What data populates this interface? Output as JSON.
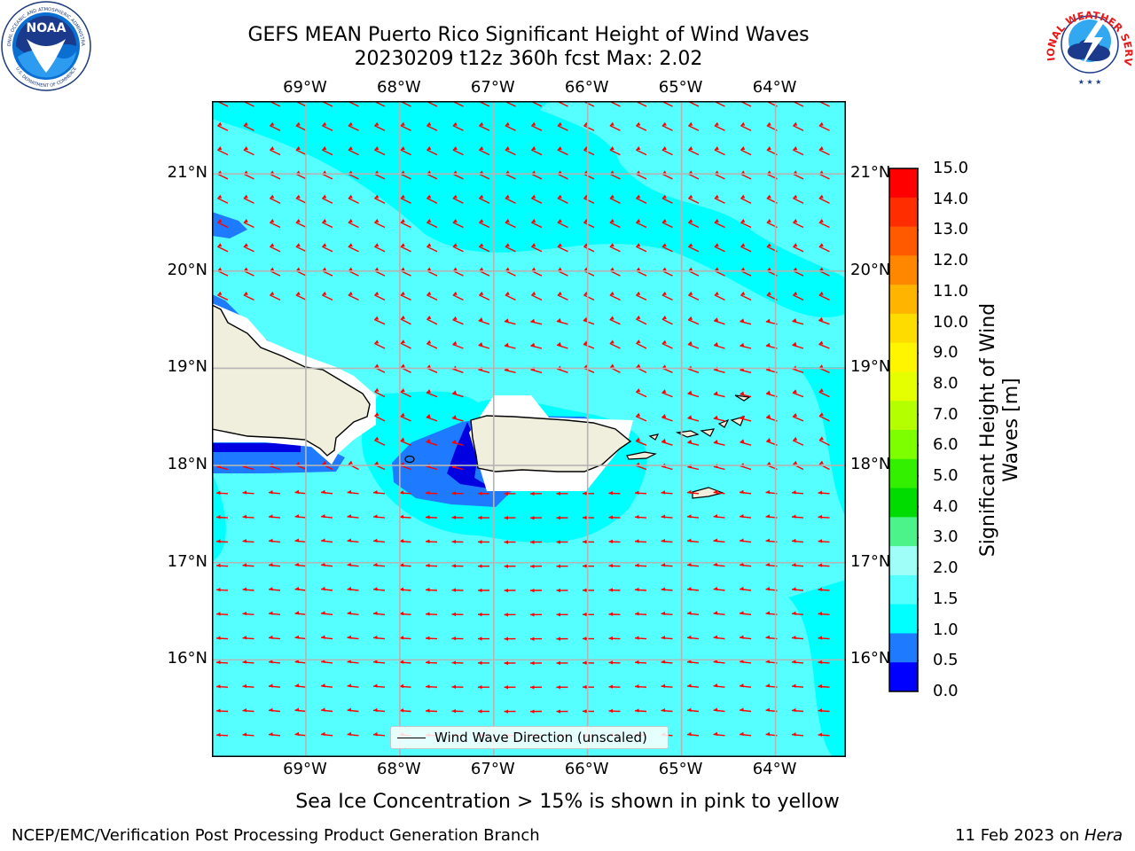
{
  "title": {
    "line1": "GEFS MEAN Puerto Rico Significant Height of Wind Waves",
    "line2": "20230209 t12z 360h fcst   Max: 2.02"
  },
  "logos": {
    "noaa_text": "NOAA",
    "noaa_ring_text": "NATIONAL OCEANIC AND ATMOSPHERIC ADMINISTRATION",
    "noaa_ring_bottom": "U.S. DEPARTMENT OF COMMERCE",
    "nws_ring_text": "NATIONAL WEATHER SERVICE"
  },
  "map": {
    "lon_ticks": [
      "69°W",
      "68°W",
      "67°W",
      "66°W",
      "65°W",
      "64°W"
    ],
    "lon_values": [
      -69,
      -68,
      -67,
      -66,
      -65,
      -64
    ],
    "lat_ticks": [
      "21°N",
      "20°N",
      "19°N",
      "18°N",
      "17°N",
      "16°N"
    ],
    "lat_values": [
      21,
      20,
      19,
      18,
      17,
      16
    ],
    "extent": {
      "lon_min": -70,
      "lon_max": -63.25,
      "lat_min": 15,
      "lat_max": 21.75
    },
    "colors": {
      "water_low": "#00ffff",
      "water_mid": "#55ffff",
      "shallow_blue": "#1e7bff",
      "deep_blue": "#0000e0",
      "land": "#f0eedc",
      "arrow": "#ff0000",
      "grid": "#b4b4b4"
    }
  },
  "legend": {
    "label": "Wind Wave Direction (unscaled)"
  },
  "colorbar": {
    "title": "Significant Height of Wind Waves [m]",
    "labels": [
      "15.0",
      "14.0",
      "13.0",
      "12.0",
      "11.0",
      "10.0",
      "9.0",
      "8.0",
      "7.0",
      "6.0",
      "5.0",
      "4.0",
      "3.0",
      "2.0",
      "1.5",
      "1.0",
      "0.5",
      "0.0"
    ],
    "colors": [
      "#ff0000",
      "#ff2d00",
      "#ff5a00",
      "#ff8700",
      "#ffb400",
      "#ffdc00",
      "#fff500",
      "#e6ff00",
      "#b4ff00",
      "#7dff00",
      "#32f000",
      "#00dc00",
      "#4cf28a",
      "#9ffff8",
      "#55ffff",
      "#00ffff",
      "#1e7bff",
      "#0000ff"
    ]
  },
  "subcaption": "Sea Ice Concentration > 15% is shown in pink to yellow",
  "footer": {
    "left": "NCEP/EMC/Verification Post Processing Product Generation Branch",
    "right_prefix": "11 Feb 2023 on ",
    "right_host": "Hera"
  }
}
